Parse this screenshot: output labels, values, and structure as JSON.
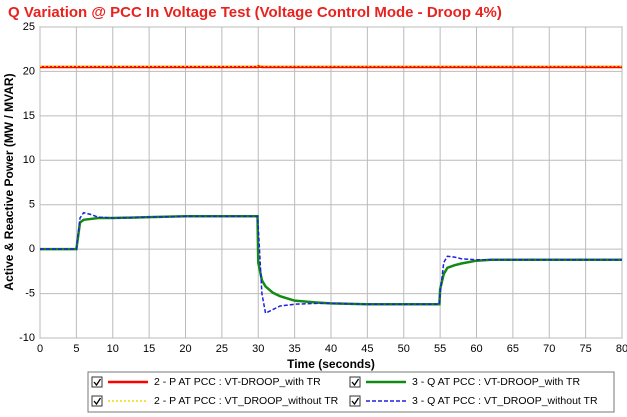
{
  "chart_data": {
    "type": "line",
    "title": "Q Variation @ PCC In Voltage Test (Voltage Control Mode - Droop 4%)",
    "x_label": "Time (seconds)",
    "y_label": "Active & Reactive Power (MW / MVAR)",
    "x": [
      0,
      5,
      5.5,
      6,
      7,
      8,
      10,
      15,
      20,
      25,
      29.9,
      30,
      30.5,
      31,
      32,
      33,
      35,
      38,
      40,
      45,
      50,
      54.9,
      55,
      55.5,
      56,
      57,
      58,
      60,
      62,
      65,
      70,
      75,
      80
    ],
    "series": [
      {
        "name": "2 - P AT PCC : VT-DROOP_with TR",
        "color": "#ff0000",
        "style": "solid",
        "values": [
          20.5,
          20.5,
          20.5,
          20.5,
          20.5,
          20.5,
          20.5,
          20.5,
          20.5,
          20.5,
          20.5,
          20.6,
          20.5,
          20.5,
          20.5,
          20.5,
          20.5,
          20.5,
          20.5,
          20.5,
          20.5,
          20.5,
          20.5,
          20.5,
          20.5,
          20.5,
          20.5,
          20.5,
          20.5,
          20.5,
          20.5,
          20.5,
          20.5
        ]
      },
      {
        "name": "2 - P AT PCC : VT_DROOP_without TR",
        "color": "#f0d800",
        "style": "dotted",
        "values": [
          20.6,
          20.6,
          20.6,
          20.6,
          20.6,
          20.6,
          20.6,
          20.6,
          20.6,
          20.6,
          20.6,
          20.7,
          20.6,
          20.6,
          20.6,
          20.6,
          20.6,
          20.6,
          20.6,
          20.6,
          20.6,
          20.6,
          20.6,
          20.6,
          20.6,
          20.6,
          20.6,
          20.6,
          20.6,
          20.6,
          20.6,
          20.6,
          20.6
        ]
      },
      {
        "name": "3 - Q AT PCC : VT-DROOP_with TR",
        "color": "#138a13",
        "style": "solid",
        "values": [
          0,
          0,
          3,
          3.3,
          3.4,
          3.5,
          3.5,
          3.6,
          3.7,
          3.7,
          3.7,
          -1.5,
          -3.5,
          -4.2,
          -4.9,
          -5.3,
          -5.8,
          -6,
          -6.1,
          -6.2,
          -6.2,
          -6.2,
          -4.5,
          -2.8,
          -2.1,
          -1.8,
          -1.6,
          -1.3,
          -1.2,
          -1.2,
          -1.2,
          -1.2,
          -1.2
        ]
      },
      {
        "name": "3 - Q AT PCC : VT_DROOP_without TR",
        "color": "#2020e0",
        "style": "dashed",
        "values": [
          0,
          0,
          3.5,
          4.1,
          3.9,
          3.6,
          3.5,
          3.6,
          3.7,
          3.7,
          3.7,
          2.5,
          -5,
          -7.2,
          -6.8,
          -6.4,
          -6.2,
          -6.1,
          -6.1,
          -6.2,
          -6.2,
          -6.2,
          -5,
          -1.5,
          -0.8,
          -0.9,
          -1.1,
          -1.2,
          -1.2,
          -1.2,
          -1.2,
          -1.2,
          -1.2
        ]
      }
    ],
    "xlim": [
      0,
      80
    ],
    "xticks": [
      0,
      5,
      10,
      15,
      20,
      25,
      30,
      35,
      40,
      45,
      50,
      55,
      60,
      65,
      70,
      75,
      80
    ],
    "ylim": [
      -10,
      25
    ],
    "yticks": [
      -10,
      -5,
      0,
      5,
      10,
      15,
      20,
      25
    ],
    "grid": true
  }
}
